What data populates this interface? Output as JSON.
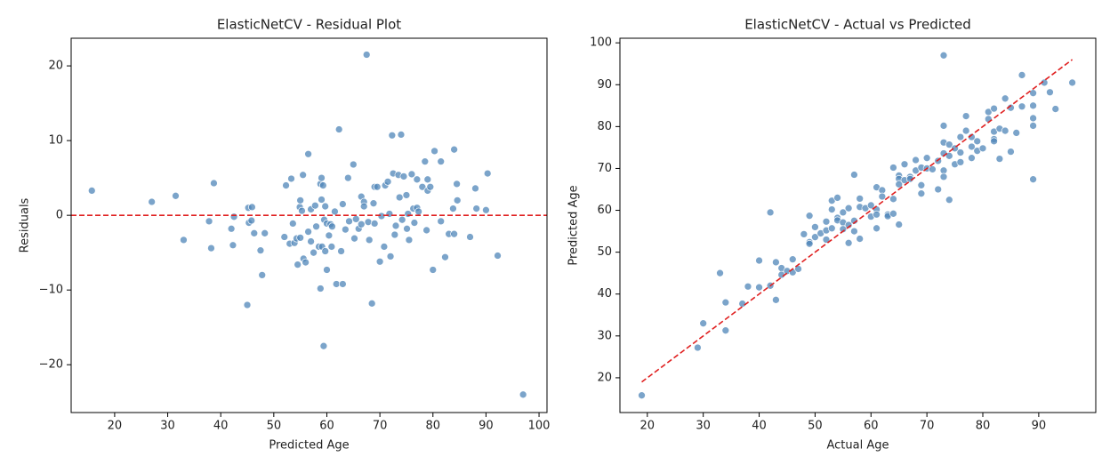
{
  "chart_data": [
    {
      "type": "scatter",
      "title": "ElasticNetCV - Residual Plot",
      "x_label": "Predicted Age",
      "y_label": "Residuals",
      "color": "#4f86b8",
      "xlim": [
        11.8,
        101.5
      ],
      "ylim": [
        -26.4,
        23.7
      ],
      "xticks": [
        20,
        30,
        40,
        50,
        60,
        70,
        80,
        90,
        100
      ],
      "yticks": [
        {
          "value": -20,
          "label": "−20"
        },
        {
          "value": -10,
          "label": "−10"
        },
        0,
        10,
        20
      ],
      "reference_line": {
        "y": [
          0,
          0
        ],
        "color": "#e02020"
      },
      "x": [
        15.7,
        27,
        31.5,
        33,
        37.8,
        38.2,
        38.7,
        42,
        42.3,
        42.5,
        45,
        45.2,
        45.3,
        45.8,
        45.9,
        46.3,
        47.5,
        47.8,
        48.3,
        52,
        52.3,
        53,
        53.3,
        53.6,
        53.9,
        54.3,
        54.5,
        54.9,
        55,
        55,
        55.3,
        55.5,
        55.6,
        56,
        56.5,
        56.5,
        57,
        57,
        57.5,
        57.8,
        58,
        58.5,
        58.8,
        58.8,
        59,
        59,
        59.1,
        59.3,
        59.4,
        59.5,
        59.7,
        59.7,
        60,
        60,
        60.4,
        60.7,
        60.9,
        61,
        61.5,
        61.8,
        62.3,
        62.7,
        63,
        63,
        63.5,
        64,
        64.2,
        65,
        65.2,
        65.5,
        66,
        66.5,
        66.5,
        67,
        67,
        67.5,
        67.8,
        68,
        68.5,
        68.8,
        69,
        69,
        69.5,
        70,
        70.3,
        70.8,
        71,
        71.5,
        71.8,
        72,
        72.3,
        72.5,
        72.8,
        73,
        73.5,
        73.7,
        74,
        74.2,
        74.5,
        75,
        75.1,
        75.3,
        75.5,
        76,
        76.3,
        76.5,
        77,
        77,
        77.3,
        78,
        78.5,
        78.8,
        79,
        79,
        79.5,
        80,
        80.3,
        81.5,
        81.5,
        82.3,
        83,
        83.8,
        84,
        84,
        84.5,
        84.6,
        87,
        88,
        88.2,
        90,
        90.3,
        92.2,
        97
      ],
      "values": [
        3.3,
        1.8,
        2.6,
        -3.3,
        -0.8,
        -4.4,
        4.3,
        -1.8,
        -4,
        -0.2,
        -12,
        1,
        -1,
        -0.7,
        1.1,
        -2.4,
        -4.7,
        -8,
        -2.4,
        -2.9,
        4,
        -3.8,
        4.9,
        -1.1,
        -3.7,
        -3.1,
        -6.6,
        1.1,
        2,
        -3,
        0.6,
        5.4,
        -5.8,
        -6.3,
        8.2,
        -2.2,
        0.8,
        -3.5,
        -5,
        1.3,
        -1.5,
        -4.2,
        -9.8,
        4.2,
        5,
        2.1,
        -4.2,
        4,
        -17.5,
        -0.6,
        -4.8,
        1.2,
        -1.1,
        -7.3,
        -2.7,
        -1.2,
        -4.2,
        -1.5,
        0.5,
        -9.2,
        11.5,
        -4.8,
        1.5,
        -9.2,
        -1.9,
        5,
        -0.8,
        6.8,
        -3.1,
        -0.5,
        -1.8,
        2.5,
        -1.2,
        1.8,
        1.2,
        21.5,
        -0.9,
        -3.3,
        -11.8,
        1.6,
        3.8,
        -1.1,
        3.8,
        -6.2,
        -0.1,
        -4.2,
        4,
        4.5,
        0.2,
        -5.5,
        10.7,
        5.6,
        -2.6,
        -1.4,
        5.4,
        2.4,
        10.8,
        -0.6,
        5.2,
        2.7,
        -1.8,
        0.2,
        -3.3,
        5.5,
        0.9,
        -1,
        4.8,
        1,
        0.5,
        3.8,
        7.2,
        -2,
        4.8,
        3.3,
        3.8,
        -7.3,
        8.6,
        7.2,
        -0.8,
        -5.6,
        -2.5,
        0.9,
        8.8,
        -2.5,
        4.2,
        2,
        -2.9,
        3.6,
        0.9,
        0.7,
        5.6,
        -5.4,
        -24
      ]
    },
    {
      "type": "scatter",
      "title": "ElasticNetCV - Actual vs Predicted",
      "x_label": "Actual Age",
      "y_label": "Predicted Age",
      "color": "#4f86b8",
      "xlim": [
        15.1,
        100.2
      ],
      "ylim": [
        11.7,
        101.1
      ],
      "xticks": [
        20,
        30,
        40,
        50,
        60,
        70,
        80,
        90
      ],
      "yticks": [
        20,
        30,
        40,
        50,
        60,
        70,
        80,
        90,
        100
      ],
      "reference_line": {
        "x": [
          19,
          96
        ],
        "y": [
          19,
          96
        ],
        "color": "#e02020"
      },
      "x": [
        19,
        29,
        30,
        33,
        34,
        34,
        37,
        38,
        40,
        40,
        42,
        42,
        43,
        43,
        44,
        44,
        45,
        46,
        46,
        47,
        48,
        49,
        49,
        49,
        50,
        50,
        51,
        52,
        52,
        52,
        53,
        53,
        53,
        54,
        54,
        54,
        55,
        55,
        55,
        56,
        56,
        56,
        57,
        57,
        57,
        58,
        58,
        58,
        59,
        60,
        60,
        61,
        61,
        61,
        61,
        62,
        62,
        63,
        63,
        64,
        64,
        64,
        65,
        65,
        65,
        65,
        66,
        66,
        67,
        67,
        68,
        68,
        69,
        69,
        69,
        70,
        70,
        71,
        72,
        72,
        73,
        73,
        73,
        73,
        73,
        73,
        74,
        74,
        74,
        75,
        75,
        76,
        76,
        76,
        77,
        77,
        78,
        78,
        78,
        79,
        79,
        80,
        81,
        81,
        82,
        82,
        82,
        82,
        83,
        83,
        84,
        84,
        85,
        85,
        86,
        87,
        87,
        89,
        89,
        89,
        89,
        89,
        91,
        92,
        93,
        96
      ],
      "values": [
        15.8,
        27.2,
        33,
        45,
        38,
        31.3,
        37.7,
        41.8,
        48,
        41.6,
        59.5,
        42,
        47.6,
        38.6,
        46.2,
        44.6,
        45.5,
        48.3,
        45.2,
        46,
        54.3,
        58.7,
        52.4,
        52,
        56,
        53.6,
        54.5,
        57.3,
        53,
        55.2,
        62.3,
        60.2,
        55.7,
        63,
        58.2,
        57.6,
        59.5,
        57.1,
        55.5,
        60.5,
        56.5,
        52.2,
        68.5,
        57.5,
        55,
        62.8,
        60.8,
        53.2,
        60.5,
        61.2,
        58.5,
        65.5,
        60.2,
        59,
        55.7,
        64.8,
        63.3,
        59,
        58.6,
        70.2,
        62.7,
        59.2,
        68.3,
        67.5,
        66.2,
        56.6,
        71,
        67.2,
        68,
        67.5,
        72,
        69.5,
        70.2,
        66,
        64,
        72.5,
        70,
        69.8,
        71.8,
        65,
        97,
        80.2,
        76.2,
        73.6,
        69.5,
        68,
        75.7,
        73,
        62.5,
        71,
        74.8,
        77.5,
        73.8,
        71.5,
        82.5,
        79,
        77.5,
        75.2,
        72.5,
        76.5,
        74.2,
        74.8,
        83.5,
        81.8,
        84.3,
        78.8,
        77,
        76.5,
        79.5,
        72.3,
        86.7,
        79,
        84.5,
        74,
        78.5,
        92.3,
        84.8,
        88,
        85,
        82,
        80.2,
        67.4,
        90.5,
        88.2,
        84.2,
        90.5
      ]
    }
  ]
}
